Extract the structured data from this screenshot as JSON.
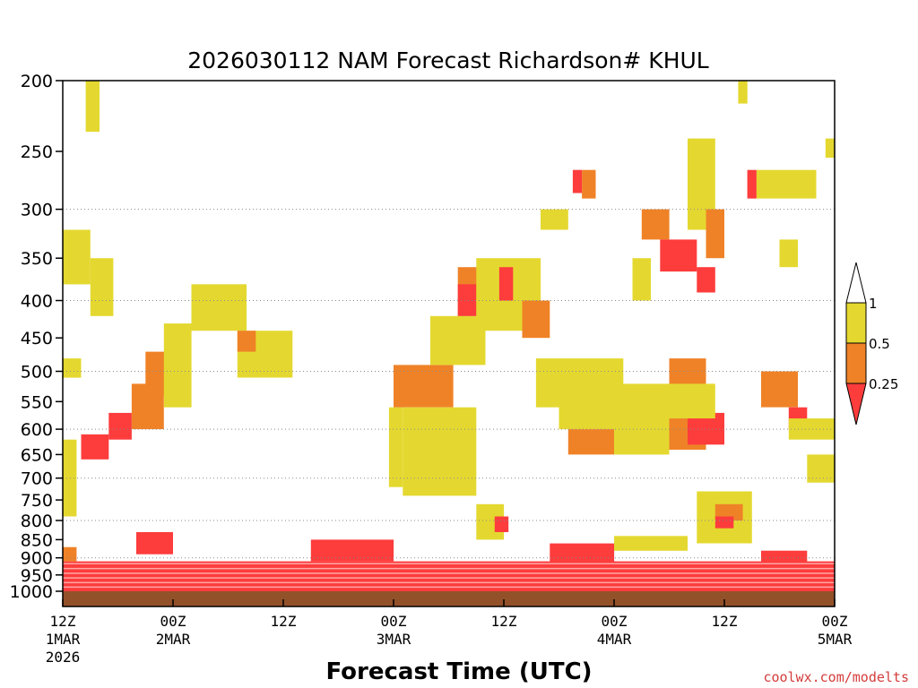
{
  "chart_data": {
    "type": "heatmap",
    "title": "2026030112 NAM Forecast Richardson# KHUL",
    "xlabel": "Forecast Time (UTC)",
    "ylabel": "",
    "y_scale": "log-pressure",
    "ylim": [
      1000,
      200
    ],
    "y_ticks": [
      "200",
      "250",
      "300",
      "350",
      "400",
      "450",
      "500",
      "550",
      "600",
      "650",
      "700",
      "750",
      "800",
      "850",
      "900",
      "950",
      "1000"
    ],
    "xlim_hours": [
      0,
      84
    ],
    "x_ticks": [
      {
        "hour": 0,
        "label": "12Z",
        "date": "1MAR",
        "year": "2026"
      },
      {
        "hour": 12,
        "label": "00Z",
        "date": "2MAR",
        "year": ""
      },
      {
        "hour": 24,
        "label": "12Z",
        "date": "",
        "year": ""
      },
      {
        "hour": 36,
        "label": "00Z",
        "date": "3MAR",
        "year": ""
      },
      {
        "hour": 48,
        "label": "12Z",
        "date": "",
        "year": ""
      },
      {
        "hour": 60,
        "label": "00Z",
        "date": "4MAR",
        "year": ""
      },
      {
        "hour": 72,
        "label": "12Z",
        "date": "",
        "year": ""
      },
      {
        "hour": 84,
        "label": "00Z",
        "date": "5MAR",
        "year": ""
      }
    ],
    "grid_levels": [
      300,
      400,
      500,
      600,
      700,
      800,
      900
    ],
    "colorbar": {
      "labels": [
        "1",
        "0.5",
        "0.25"
      ],
      "bands": [
        {
          "range": "> 1",
          "color": "#ffffff"
        },
        {
          "range": "0.5 - 1",
          "color": "#e4d830"
        },
        {
          "range": "0.25 - 0.5",
          "color": "#ef8227"
        },
        {
          "range": "< 0.25",
          "color": "#fd3c3c"
        }
      ]
    },
    "colors": {
      "yellow": "#e4d830",
      "orange": "#ef8227",
      "red": "#fd3c3c",
      "ground": "#93512a"
    },
    "ground_level_hpa": 1000,
    "regions": [
      {
        "class": "red",
        "h": [
          0,
          84
        ],
        "p": [
          910,
          1000
        ]
      },
      {
        "class": "red",
        "h": [
          27,
          36
        ],
        "p": [
          850,
          910
        ]
      },
      {
        "class": "red",
        "h": [
          53,
          60
        ],
        "p": [
          860,
          930
        ]
      },
      {
        "class": "red",
        "h": [
          8,
          12
        ],
        "p": [
          830,
          890
        ]
      },
      {
        "class": "orange",
        "h": [
          0,
          1.5
        ],
        "p": [
          870,
          910
        ]
      },
      {
        "class": "red",
        "h": [
          2,
          5
        ],
        "p": [
          610,
          660
        ]
      },
      {
        "class": "red",
        "h": [
          5,
          7.5
        ],
        "p": [
          570,
          620
        ]
      },
      {
        "class": "orange",
        "h": [
          7.5,
          11
        ],
        "p": [
          520,
          600
        ]
      },
      {
        "class": "orange",
        "h": [
          9,
          12.5
        ],
        "p": [
          470,
          540
        ]
      },
      {
        "class": "yellow",
        "h": [
          11,
          14
        ],
        "p": [
          430,
          560
        ]
      },
      {
        "class": "yellow",
        "h": [
          14,
          20
        ],
        "p": [
          380,
          440
        ]
      },
      {
        "class": "yellow",
        "h": [
          19,
          25
        ],
        "p": [
          440,
          510
        ]
      },
      {
        "class": "orange",
        "h": [
          19,
          21
        ],
        "p": [
          440,
          470
        ]
      },
      {
        "class": "yellow",
        "h": [
          0,
          3
        ],
        "p": [
          320,
          380
        ]
      },
      {
        "class": "yellow",
        "h": [
          3,
          5.5
        ],
        "p": [
          350,
          420
        ]
      },
      {
        "class": "yellow",
        "h": [
          2.5,
          4
        ],
        "p": [
          200,
          235
        ]
      },
      {
        "class": "yellow",
        "h": [
          0,
          1.5
        ],
        "p": [
          620,
          790
        ]
      },
      {
        "class": "yellow",
        "h": [
          0,
          2
        ],
        "p": [
          480,
          510
        ]
      },
      {
        "class": "yellow",
        "h": [
          35.5,
          37
        ],
        "p": [
          560,
          720
        ]
      },
      {
        "class": "orange",
        "h": [
          36,
          42.5
        ],
        "p": [
          490,
          560
        ]
      },
      {
        "class": "yellow",
        "h": [
          37,
          45
        ],
        "p": [
          560,
          740
        ]
      },
      {
        "class": "yellow",
        "h": [
          40,
          46
        ],
        "p": [
          420,
          490
        ]
      },
      {
        "class": "orange",
        "h": [
          43,
          46
        ],
        "p": [
          360,
          420
        ]
      },
      {
        "class": "red",
        "h": [
          43,
          45
        ],
        "p": [
          380,
          420
        ]
      },
      {
        "class": "yellow",
        "h": [
          45,
          52
        ],
        "p": [
          350,
          440
        ]
      },
      {
        "class": "red",
        "h": [
          47.5,
          49
        ],
        "p": [
          360,
          400
        ]
      },
      {
        "class": "orange",
        "h": [
          50,
          53
        ],
        "p": [
          400,
          450
        ]
      },
      {
        "class": "yellow",
        "h": [
          45,
          48
        ],
        "p": [
          760,
          850
        ]
      },
      {
        "class": "red",
        "h": [
          47,
          48.5
        ],
        "p": [
          790,
          830
        ]
      },
      {
        "class": "yellow",
        "h": [
          51.5,
          61
        ],
        "p": [
          480,
          560
        ]
      },
      {
        "class": "yellow",
        "h": [
          54,
          66
        ],
        "p": [
          520,
          600
        ]
      },
      {
        "class": "orange",
        "h": [
          55,
          60
        ],
        "p": [
          600,
          650
        ]
      },
      {
        "class": "yellow",
        "h": [
          60,
          66
        ],
        "p": [
          590,
          650
        ]
      },
      {
        "class": "orange",
        "h": [
          66,
          70
        ],
        "p": [
          480,
          640
        ]
      },
      {
        "class": "red",
        "h": [
          68,
          72
        ],
        "p": [
          570,
          630
        ]
      },
      {
        "class": "yellow",
        "h": [
          66,
          71
        ],
        "p": [
          520,
          580
        ]
      },
      {
        "class": "orange",
        "h": [
          63,
          66
        ],
        "p": [
          300,
          330
        ]
      },
      {
        "class": "red",
        "h": [
          65,
          69
        ],
        "p": [
          330,
          365
        ]
      },
      {
        "class": "red",
        "h": [
          69,
          71
        ],
        "p": [
          360,
          390
        ]
      },
      {
        "class": "yellow",
        "h": [
          62,
          64
        ],
        "p": [
          350,
          400
        ]
      },
      {
        "class": "yellow",
        "h": [
          68,
          71
        ],
        "p": [
          240,
          320
        ]
      },
      {
        "class": "orange",
        "h": [
          70,
          72
        ],
        "p": [
          300,
          350
        ]
      },
      {
        "class": "red",
        "h": [
          55.5,
          56.5
        ],
        "p": [
          265,
          285
        ]
      },
      {
        "class": "orange",
        "h": [
          56.5,
          58
        ],
        "p": [
          265,
          290
        ]
      },
      {
        "class": "yellow",
        "h": [
          52,
          55
        ],
        "p": [
          300,
          320
        ]
      },
      {
        "class": "red",
        "h": [
          74.5,
          75.5
        ],
        "p": [
          265,
          290
        ]
      },
      {
        "class": "yellow",
        "h": [
          75.5,
          82
        ],
        "p": [
          265,
          290
        ]
      },
      {
        "class": "yellow",
        "h": [
          73.5,
          74.5
        ],
        "p": [
          200,
          215
        ]
      },
      {
        "class": "yellow",
        "h": [
          83,
          84
        ],
        "p": [
          240,
          255
        ]
      },
      {
        "class": "yellow",
        "h": [
          78,
          80
        ],
        "p": [
          330,
          360
        ]
      },
      {
        "class": "orange",
        "h": [
          76,
          80
        ],
        "p": [
          500,
          560
        ]
      },
      {
        "class": "red",
        "h": [
          79,
          81
        ],
        "p": [
          560,
          600
        ]
      },
      {
        "class": "yellow",
        "h": [
          79,
          84
        ],
        "p": [
          580,
          620
        ]
      },
      {
        "class": "yellow",
        "h": [
          81,
          84
        ],
        "p": [
          650,
          710
        ]
      },
      {
        "class": "red",
        "h": [
          76,
          81
        ],
        "p": [
          880,
          925
        ]
      },
      {
        "class": "yellow",
        "h": [
          69,
          75
        ],
        "p": [
          730,
          860
        ]
      },
      {
        "class": "orange",
        "h": [
          71,
          74
        ],
        "p": [
          760,
          800
        ]
      },
      {
        "class": "red",
        "h": [
          71,
          73
        ],
        "p": [
          790,
          820
        ]
      },
      {
        "class": "yellow",
        "h": [
          60,
          68
        ],
        "p": [
          840,
          880
        ]
      }
    ]
  },
  "credit": "coolwx.com/modelts"
}
